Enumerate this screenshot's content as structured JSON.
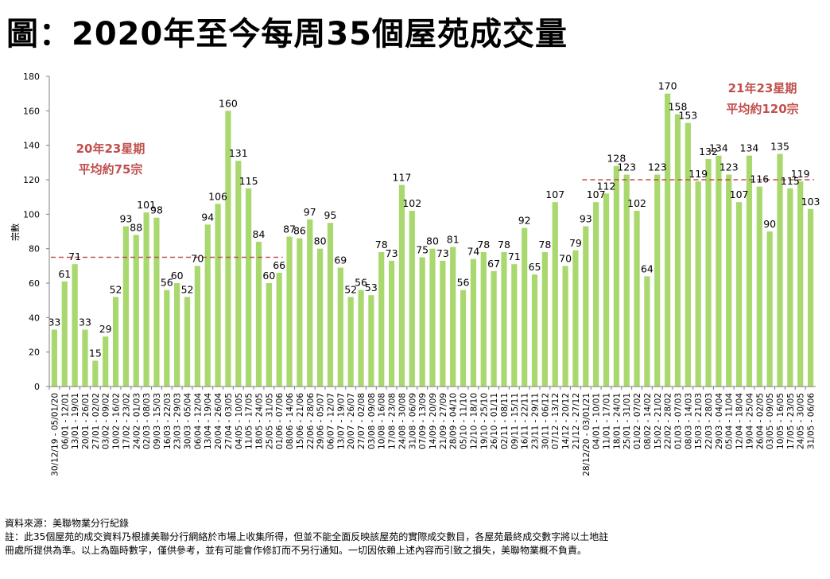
{
  "title": "圖：2020年至今每周35個屋苑成交量",
  "chart_data": {
    "type": "bar",
    "ylabel": "宗數",
    "ylim": [
      0,
      180
    ],
    "yticks": [
      0,
      20,
      40,
      60,
      80,
      100,
      120,
      140,
      160,
      180
    ],
    "bar_color": "#a9d86e",
    "avg_line_color": "#c0504d",
    "categories": [
      "30/12/19 - 05/01/20",
      "06/01 - 12/01",
      "13/01 - 19/01",
      "20/01 - 26/01",
      "27/01 - 02/02",
      "03/02 - 09/02",
      "10/02 - 16/02",
      "17/02 - 23/02",
      "24/02 - 01/03",
      "02/03 - 08/03",
      "09/03 - 15/03",
      "16/03 - 22/03",
      "23/03 - 29/03",
      "30/03 - 05/04",
      "06/04 - 12/04",
      "13/04 - 19/04",
      "20/04 - 26/04",
      "27/04 - 03/05",
      "04/05 - 10/05",
      "11/05 - 17/05",
      "18/05 - 24/05",
      "25/05 - 31/05",
      "01/06 - 07/06",
      "08/06 - 14/06",
      "15/06 - 21/06",
      "22/06 - 28/06",
      "29/06 - 05/07",
      "06/07 - 12/07",
      "13/07 - 19/07",
      "20/07 - 26/07",
      "27/07 - 02/08",
      "03/08 - 09/08",
      "10/08 - 16/08",
      "17/08 - 23/08",
      "24/08 - 30/08",
      "31/08 - 06/09",
      "07/09 - 13/09",
      "14/09 - 20/09",
      "21/09 - 27/09",
      "28/09 - 04/10",
      "05/10 - 11/10",
      "12/10 - 18/10",
      "19/10 - 25/10",
      "26/10 - 01/11",
      "02/11 - 08/11",
      "09/11 - 15/11",
      "16/11 - 22/11",
      "23/11 - 29/11",
      "30/11 - 06/12",
      "07/12 - 13/12",
      "14/12 - 20/12",
      "21/12 - 27/12",
      "28/12/20 - 03/01/21",
      "04/01 - 10/01",
      "11/01 - 17/01",
      "18/01 - 24/01",
      "25/01 - 31/01",
      "01/02 - 07/02",
      "08/02 - 14/02",
      "15/02 - 21/02",
      "22/02 - 28/02",
      "01/03 - 07/03",
      "08/03 - 14/03",
      "15/03 - 21/03",
      "22/03 - 28/03",
      "29/03 - 04/04",
      "05/04 - 11/04",
      "12/04 - 18/04",
      "19/04 - 25/04",
      "26/04 - 02/05",
      "03/05 - 09/05",
      "10/05 - 16/05",
      "17/05 - 23/05",
      "24/05 - 30/05",
      "31/05 - 06/06"
    ],
    "values": [
      33,
      61,
      71,
      33,
      15,
      29,
      52,
      93,
      88,
      101,
      98,
      56,
      60,
      52,
      70,
      94,
      106,
      160,
      131,
      115,
      84,
      60,
      66,
      87,
      86,
      97,
      80,
      95,
      69,
      52,
      56,
      53,
      78,
      73,
      117,
      102,
      75,
      80,
      73,
      81,
      56,
      74,
      78,
      67,
      78,
      71,
      92,
      65,
      78,
      107,
      70,
      79,
      93,
      107,
      112,
      128,
      123,
      102,
      64,
      123,
      170,
      158,
      153,
      119,
      132,
      134,
      123,
      107,
      134,
      116,
      90,
      135,
      115,
      119,
      103
    ],
    "averages": [
      {
        "label_line1": "20年23星期",
        "label_line2": "平均約75宗",
        "value": 75
      },
      {
        "label_line1": "21年23星期",
        "label_line2": "平均約120宗",
        "value": 120
      }
    ]
  },
  "footer": {
    "source": "資料來源：美聯物業分行紀錄",
    "note1": "註：此35個屋苑的成交資料乃根據美聯分行網絡於市場上收集所得，但並不能全面反映該屋苑的實際成交數目，各屋苑最終成交數字將以土地註",
    "note2": "冊處所提供為準。以上為臨時數字，僅供參考，並有可能會作修訂而不另行通知。一切因依賴上述內容而引致之損失，美聯物業概不負責。"
  }
}
